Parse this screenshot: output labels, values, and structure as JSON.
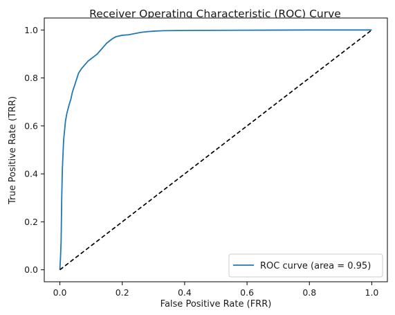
{
  "chart_data": {
    "type": "line",
    "title": "Receiver Operating Characteristic (ROC) Curve",
    "xlabel": "False Positive Rate (FRR)",
    "ylabel": "True Positive Rate (TRR)",
    "xlim": [
      -0.05,
      1.05
    ],
    "ylim": [
      -0.05,
      1.05
    ],
    "xticks": [
      "0.0",
      "0.2",
      "0.4",
      "0.6",
      "0.8",
      "1.0"
    ],
    "yticks": [
      "0.0",
      "0.2",
      "0.4",
      "0.6",
      "0.8",
      "1.0"
    ],
    "grid": false,
    "legend": {
      "position": "lower-right",
      "entries": [
        "ROC curve (area = 0.95)"
      ]
    },
    "series": [
      {
        "name": "ROC curve (area = 0.95)",
        "color": "#1f77b4",
        "style": "solid",
        "x": [
          0.0,
          0.002,
          0.004,
          0.006,
          0.008,
          0.01,
          0.012,
          0.015,
          0.018,
          0.022,
          0.026,
          0.03,
          0.035,
          0.04,
          0.045,
          0.05,
          0.055,
          0.06,
          0.065,
          0.07,
          0.08,
          0.09,
          0.1,
          0.11,
          0.12,
          0.13,
          0.14,
          0.15,
          0.16,
          0.17,
          0.18,
          0.2,
          0.22,
          0.24,
          0.26,
          0.28,
          0.3,
          0.33,
          0.4,
          0.6,
          0.8,
          1.0
        ],
        "y": [
          0.0,
          0.05,
          0.12,
          0.3,
          0.42,
          0.48,
          0.54,
          0.58,
          0.62,
          0.65,
          0.67,
          0.69,
          0.71,
          0.74,
          0.76,
          0.78,
          0.8,
          0.82,
          0.83,
          0.84,
          0.855,
          0.87,
          0.88,
          0.89,
          0.9,
          0.915,
          0.93,
          0.945,
          0.955,
          0.965,
          0.972,
          0.978,
          0.98,
          0.985,
          0.99,
          0.993,
          0.995,
          0.997,
          0.998,
          0.999,
          1.0,
          1.0
        ]
      },
      {
        "name": "",
        "color": "#000000",
        "style": "dashed",
        "x": [
          0.0,
          1.0
        ],
        "y": [
          0.0,
          1.0
        ]
      }
    ]
  }
}
